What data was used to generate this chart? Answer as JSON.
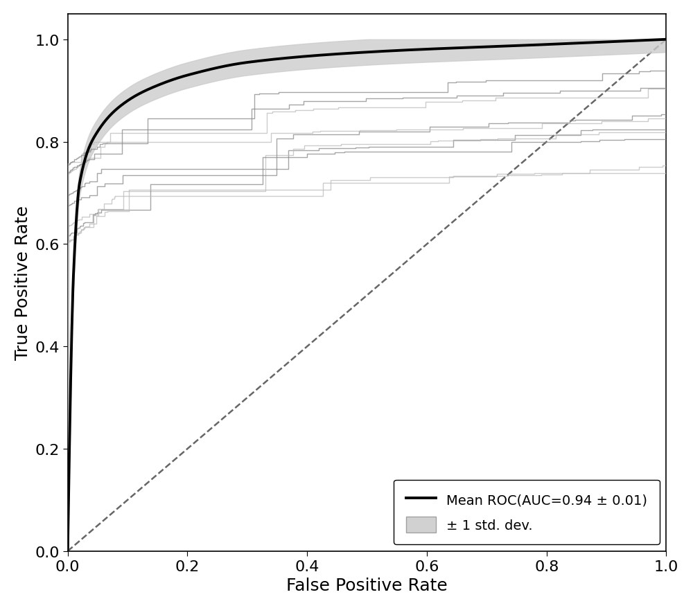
{
  "title": "",
  "xlabel": "False Positive Rate",
  "ylabel": "True Positive Rate",
  "xlim": [
    0.0,
    1.0
  ],
  "ylim": [
    0.0,
    1.05
  ],
  "xticks": [
    0.0,
    0.2,
    0.4,
    0.6,
    0.8,
    1.0
  ],
  "yticks": [
    0.0,
    0.2,
    0.4,
    0.6,
    0.8,
    1.0
  ],
  "mean_auc": 0.94,
  "std_auc": 0.01,
  "legend_mean_label": "Mean ROC(AUC=0.94 ± 0.01)",
  "legend_std_label": "± 1 std. dev.",
  "mean_color": "#000000",
  "individual_color_dark": "#888888",
  "individual_color_light": "#bbbbbb",
  "std_fill_color": "#cccccc",
  "diagonal_color": "#666666",
  "mean_linewidth": 2.8,
  "individual_linewidth": 1.0,
  "background_color": "#ffffff",
  "axis_label_fontsize": 18,
  "tick_fontsize": 16,
  "legend_fontsize": 14,
  "n_individual_curves": 10,
  "random_seed": 42
}
